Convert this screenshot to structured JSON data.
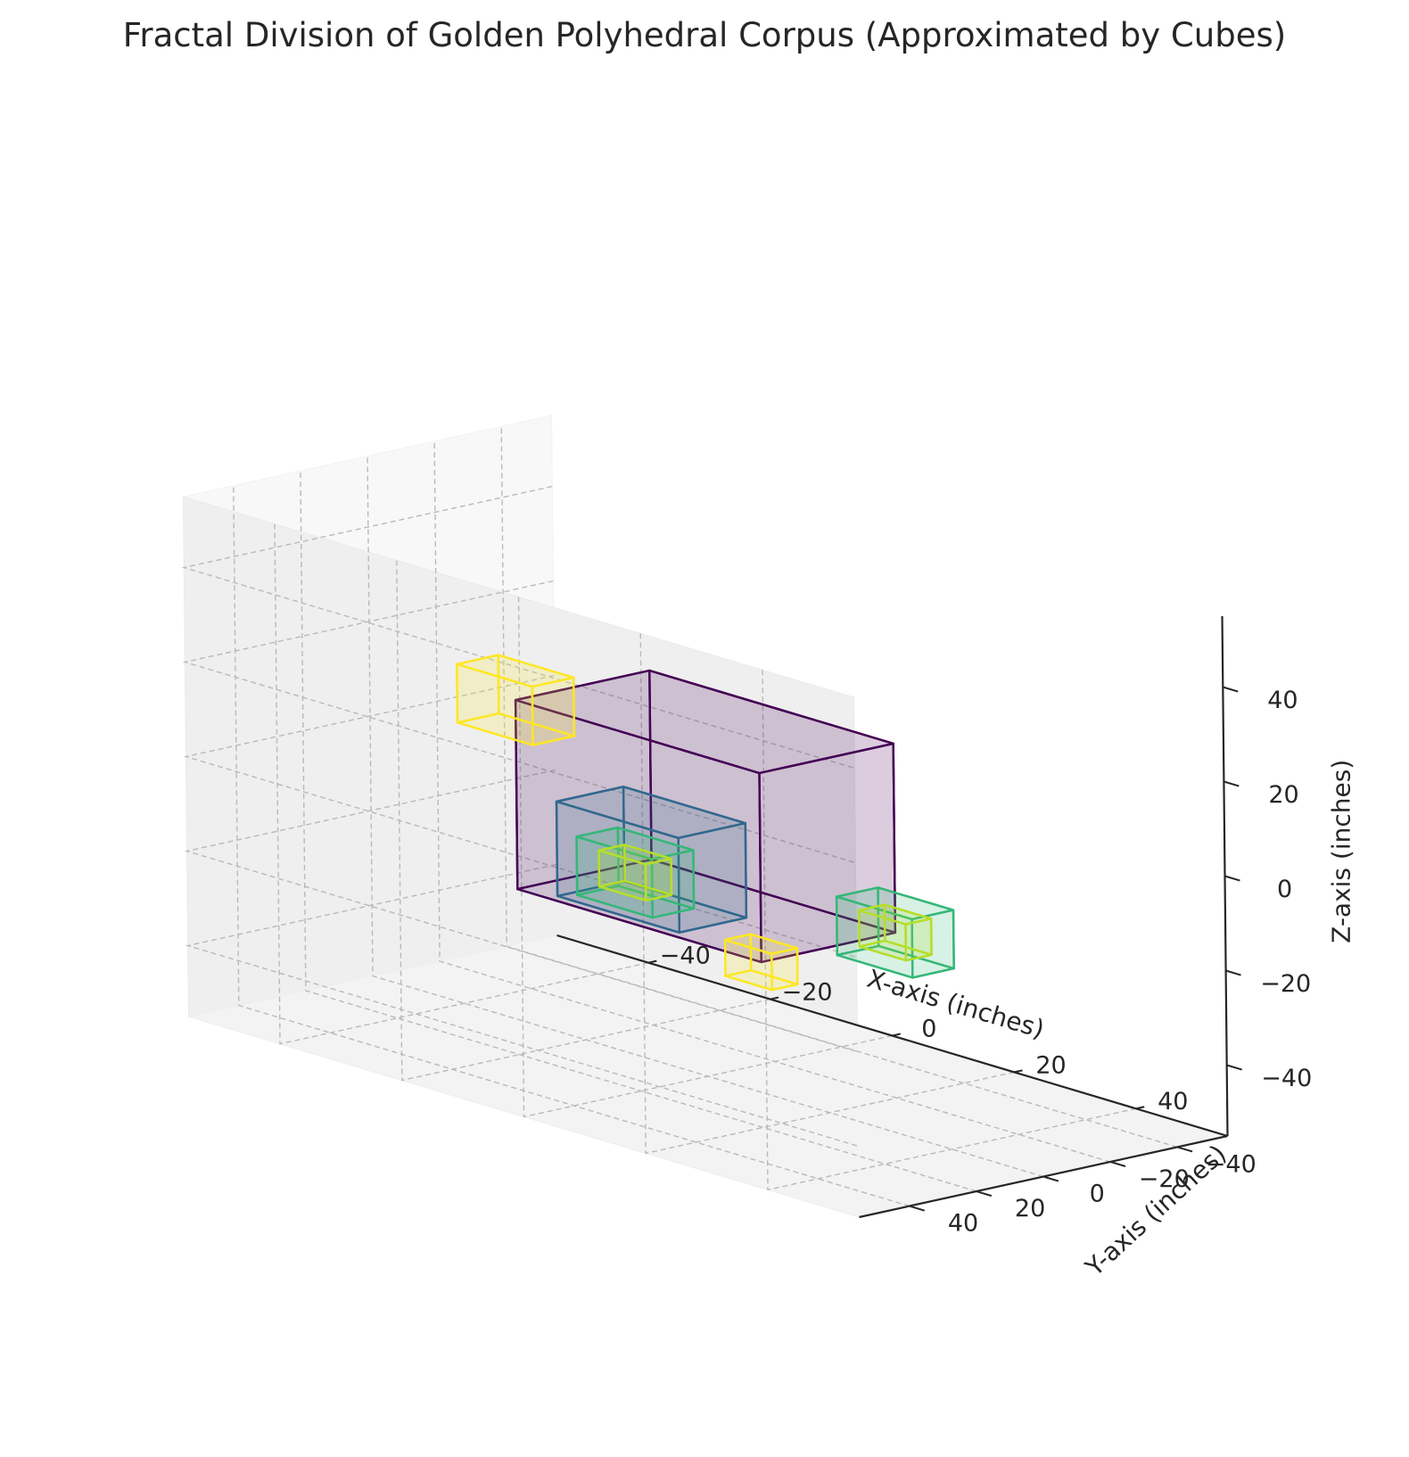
{
  "chart_data": {
    "type": "3d-cubes",
    "title": "Fractal Division of Golden Polyhedral Corpus (Approximated by Cubes)",
    "xlabel": "X-axis (inches)",
    "ylabel": "Y-axis (inches)",
    "zlabel": "Z-axis (inches)",
    "xlim": [
      -55,
      55
    ],
    "ylim": [
      -55,
      55
    ],
    "zlim": [
      -55,
      55
    ],
    "x_ticks": [
      "−40",
      "−20",
      "0",
      "20",
      "40"
    ],
    "y_ticks": [
      "−40",
      "−20",
      "0",
      "20",
      "40"
    ],
    "z_ticks": [
      "−40",
      "−20",
      "0",
      "20",
      "40"
    ],
    "x_tick_values": [
      -40,
      -20,
      0,
      20,
      40
    ],
    "y_tick_values": [
      -40,
      -20,
      0,
      20,
      40
    ],
    "z_tick_values": [
      -40,
      -20,
      0,
      20,
      40
    ],
    "grid": true,
    "colormap": "viridis",
    "cubes": [
      {
        "center": [
          0,
          0,
          0
        ],
        "size": 40,
        "color": "#440154"
      },
      {
        "center": [
          -20,
          -20,
          -20
        ],
        "size": 20,
        "color": "#31688e"
      },
      {
        "center": [
          -26,
          -26,
          -26
        ],
        "size": 12.36,
        "color": "#35b779"
      },
      {
        "center": [
          20,
          -20,
          -20
        ],
        "size": 12.36,
        "color": "#35b779"
      },
      {
        "center": [
          -20,
          20,
          20
        ],
        "size": 12.36,
        "color": "#fde725"
      },
      {
        "center": [
          20,
          20,
          -20
        ],
        "size": 7.64,
        "color": "#fde725"
      },
      {
        "center": [
          20,
          -20,
          -20
        ],
        "size": 7.64,
        "color": "#b5de2b"
      },
      {
        "center": [
          -26,
          -26,
          -26
        ],
        "size": 7.64,
        "color": "#b5de2b"
      }
    ]
  }
}
